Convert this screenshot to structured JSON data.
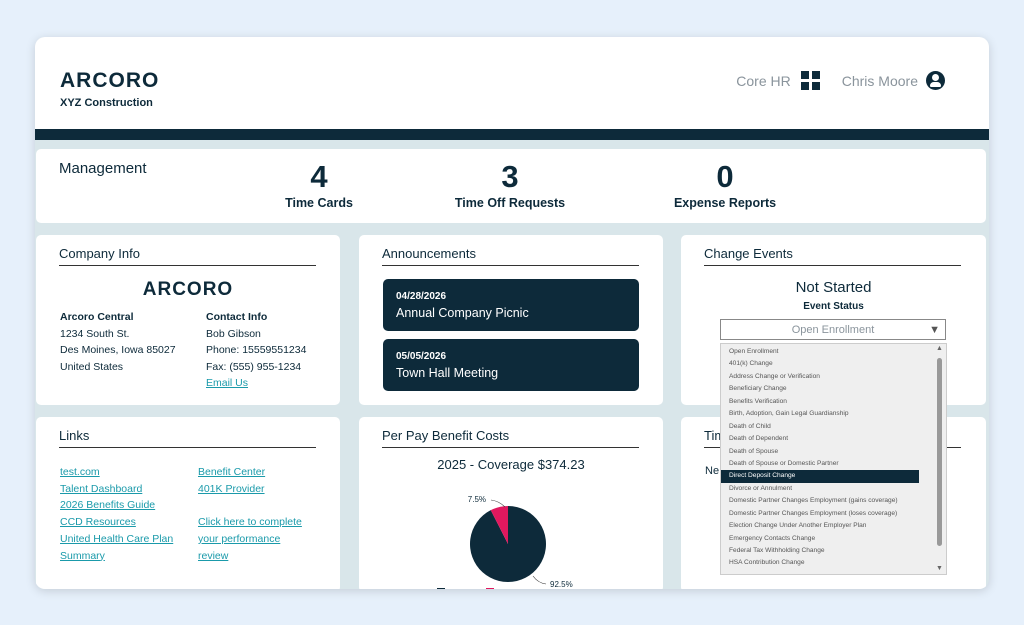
{
  "header": {
    "logo": "ARCORO",
    "company": "XYZ Construction",
    "module": "Core HR",
    "user": "Chris Moore"
  },
  "management": {
    "title": "Management",
    "stats": [
      {
        "value": "4",
        "label": "Time Cards"
      },
      {
        "value": "3",
        "label": "Time Off Requests"
      },
      {
        "value": "0",
        "label": "Expense Reports"
      }
    ]
  },
  "company_info": {
    "title": "Company Info",
    "logo": "ARCORO",
    "address": [
      "Arcoro Central",
      "1234 South St.",
      "Des Moines, Iowa 85027",
      "United States"
    ],
    "contact": [
      "Contact Info",
      "Bob Gibson",
      "Phone: 15559551234",
      "Fax: (555) 955-1234"
    ],
    "email_link": "Email Us"
  },
  "announcements": {
    "title": "Announcements",
    "items": [
      {
        "date": "04/28/2026",
        "text": "Annual Company Picnic"
      },
      {
        "date": "05/05/2026",
        "text": "Town Hall Meeting"
      }
    ]
  },
  "change_events": {
    "title": "Change Events",
    "status": "Not Started",
    "status_label": "Event Status",
    "select_value": "Open Enrollment",
    "options": [
      "Open Enrollment",
      "401(k) Change",
      "Address Change or Verification",
      "Beneficiary Change",
      "Benefits Verification",
      "Birth, Adoption, Gain Legal Guardianship",
      "Death of Child",
      "Death of Dependent",
      "Death of Spouse",
      "Death of Spouse or Domestic Partner",
      "Direct Deposit Change",
      "Divorce or Annulment",
      "Domestic Partner Changes Employment (gains coverage)",
      "Domestic Partner Changes Employment (loses coverage)",
      "Election Change Under Another Employer Plan",
      "Emergency Contacts Change",
      "Federal Tax Withholding Change",
      "HSA Contribution Change"
    ],
    "selected_option": "Direct Deposit Change"
  },
  "links": {
    "title": "Links",
    "col1": [
      "test.com",
      "Talent Dashboard",
      "2026 Benefits Guide",
      "CCD Resources",
      "United Health Care Plan",
      "Summary"
    ],
    "col2": [
      "Benefit Center",
      "401K Provider",
      "",
      "",
      "Click here to complete",
      "your performance",
      "review"
    ]
  },
  "benefit_costs": {
    "title": "Per Pay Benefit Costs",
    "subtitle": "2025 - Coverage $374.23"
  },
  "time_card": {
    "title_partial": "Tim",
    "text_partial": "Ne"
  },
  "colors": {
    "navy": "#0d2a3a",
    "pink": "#e0185e",
    "link": "#1a9aaa"
  },
  "chart_data": {
    "type": "pie",
    "title": "2025 - Coverage $374.23",
    "categories": [
      "Medical",
      "Short Term Disability"
    ],
    "values": [
      92.5,
      7.5
    ],
    "labels": [
      "92.5%",
      "7.5%"
    ],
    "colors": [
      "#0d2a3a",
      "#e0185e"
    ],
    "legend": "bottom"
  }
}
